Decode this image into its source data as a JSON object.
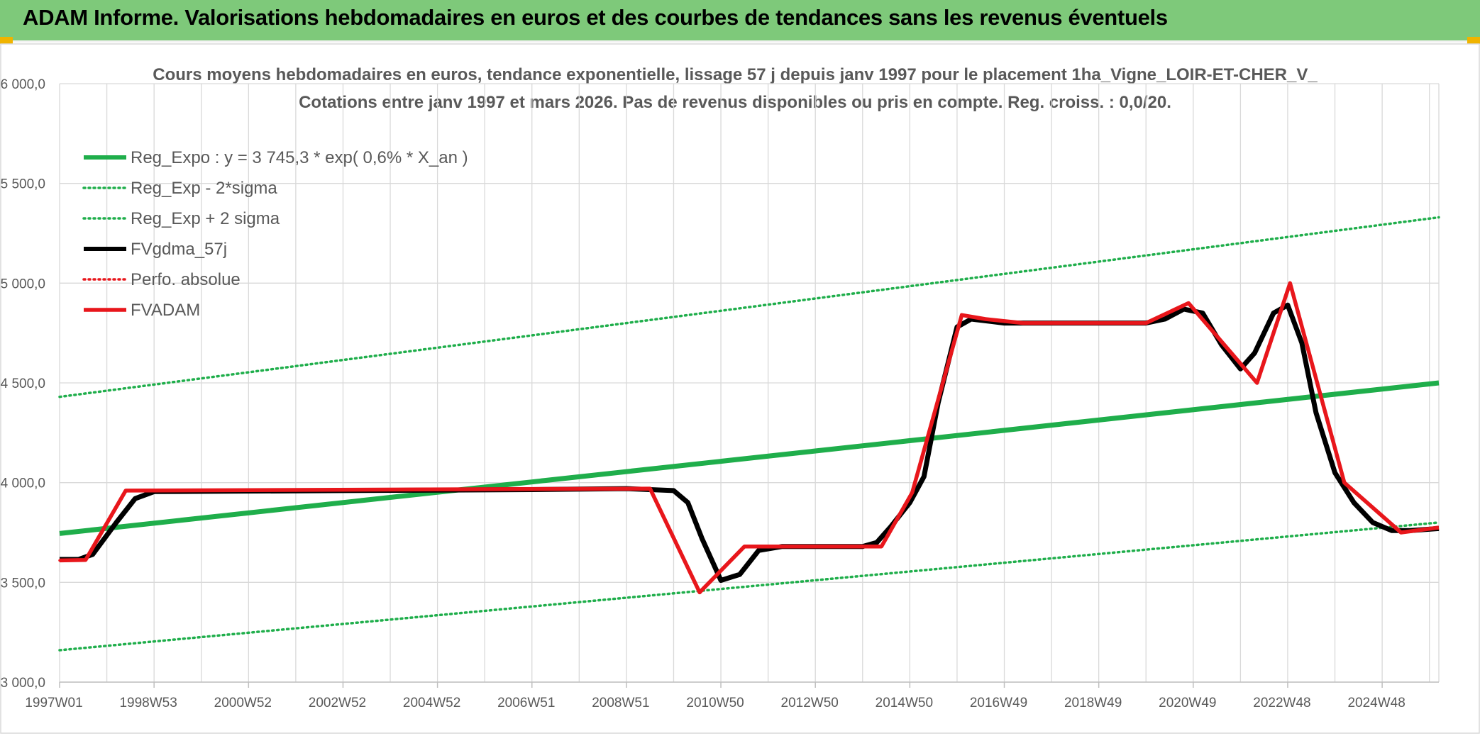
{
  "page_title": "ADAM Informe. Valorisations hebdomadaires en euros et des courbes de tendances sans les revenus éventuels",
  "colors": {
    "banner": "#7ec97a",
    "reg_expo": "#1fae4b",
    "fvgdma": "#000000",
    "fvadam": "#e8161b",
    "perfo": "#e8161b",
    "grid": "#d9d9d9"
  },
  "chart_data": {
    "type": "line",
    "title_line1": "Cours moyens hebdomadaires en euros, tendance exponentielle, lissage 57 j depuis janv 1997 pour le placement 1ha_Vigne_LOIR-ET-CHER_V_",
    "title_line2": "Cotations entre janv 1997 et mars 2026. Pas de revenus disponibles ou pris en compte. Reg. croiss. : 0,0/20.",
    "ylim": [
      3000,
      6000
    ],
    "y_ticks": [
      3000,
      3500,
      4000,
      4500,
      5000,
      5500,
      6000
    ],
    "y_tick_labels": [
      "3 000,0",
      "3 500,0",
      "4 000,0",
      "4 500,0",
      "5 000,0",
      "5 500,0",
      "6 000,0"
    ],
    "x_range_years": [
      1997.0,
      2026.2
    ],
    "x_ticks": [
      {
        "year": 1997.0,
        "label": "1997W01"
      },
      {
        "year": 1999.0,
        "label": "1998W53"
      },
      {
        "year": 2001.0,
        "label": "2000W52"
      },
      {
        "year": 2003.0,
        "label": "2002W52"
      },
      {
        "year": 2005.0,
        "label": "2004W52"
      },
      {
        "year": 2007.0,
        "label": "2006W51"
      },
      {
        "year": 2009.0,
        "label": "2008W51"
      },
      {
        "year": 2011.0,
        "label": "2010W50"
      },
      {
        "year": 2013.0,
        "label": "2012W50"
      },
      {
        "year": 2015.0,
        "label": "2014W50"
      },
      {
        "year": 2017.0,
        "label": "2016W49"
      },
      {
        "year": 2019.0,
        "label": "2018W49"
      },
      {
        "year": 2021.0,
        "label": "2020W49"
      },
      {
        "year": 2023.0,
        "label": "2022W48"
      },
      {
        "year": 2025.0,
        "label": "2024W48"
      }
    ],
    "grid": true,
    "legend_position": "top-left",
    "series": [
      {
        "name": "Reg_Expo : y = 3 745,3 * exp( 0,6% *  X_an )",
        "style": "solid-thick",
        "color": "#1fae4b",
        "x": [
          1997.0,
          2026.2
        ],
        "y": [
          3745,
          4500
        ]
      },
      {
        "name": "Reg_Exp - 2*sigma",
        "style": "dotted",
        "color": "#1fae4b",
        "x": [
          1997.0,
          2026.2
        ],
        "y": [
          3160,
          3800
        ]
      },
      {
        "name": "Reg_Exp + 2 sigma",
        "style": "dotted",
        "color": "#1fae4b",
        "x": [
          1997.0,
          2026.2
        ],
        "y": [
          4430,
          5330
        ]
      },
      {
        "name": "FVgdma_57j",
        "style": "solid",
        "color": "#000000",
        "x": [
          1997.0,
          1997.4,
          1997.7,
          1998.2,
          1998.6,
          1999.0,
          2003.0,
          2007.0,
          2009.0,
          2010.0,
          2010.3,
          2010.6,
          2011.0,
          2011.4,
          2011.8,
          2012.3,
          2013.0,
          2014.0,
          2014.3,
          2014.6,
          2015.0,
          2015.3,
          2015.6,
          2016.0,
          2016.3,
          2017.0,
          2018.0,
          2019.0,
          2020.0,
          2020.4,
          2020.8,
          2021.2,
          2021.6,
          2022.0,
          2022.3,
          2022.7,
          2023.0,
          2023.3,
          2023.6,
          2024.0,
          2024.4,
          2024.8,
          2025.2,
          2025.6,
          2026.2
        ],
        "y": [
          3615,
          3615,
          3640,
          3800,
          3920,
          3955,
          3960,
          3965,
          3970,
          3960,
          3900,
          3720,
          3510,
          3540,
          3660,
          3680,
          3680,
          3680,
          3700,
          3780,
          3900,
          4030,
          4400,
          4780,
          4820,
          4800,
          4800,
          4800,
          4800,
          4820,
          4870,
          4850,
          4690,
          4570,
          4650,
          4850,
          4890,
          4700,
          4350,
          4050,
          3900,
          3800,
          3760,
          3760,
          3770
        ]
      },
      {
        "name": "Perfo. absolue",
        "style": "dotted",
        "color": "#e8161b",
        "x": [
          1997.0,
          1997.55,
          1998.4,
          2009.5,
          2010.55,
          2011.5,
          2014.4,
          2015.05,
          2016.1,
          2016.6,
          2017.4,
          2020.0,
          2020.9,
          2022.35,
          2023.05,
          2024.2,
          2025.4,
          2026.2
        ],
        "y": [
          3610,
          3612,
          3960,
          3970,
          3450,
          3680,
          3680,
          3950,
          4840,
          4820,
          4800,
          4800,
          4900,
          4500,
          5000,
          4000,
          3750,
          3775
        ]
      },
      {
        "name": "FVADAM",
        "style": "solid-thick",
        "color": "#e8161b",
        "x": [
          1997.0,
          1997.55,
          1998.4,
          2009.5,
          2010.55,
          2011.5,
          2014.4,
          2015.05,
          2016.1,
          2016.6,
          2017.4,
          2020.0,
          2020.9,
          2022.35,
          2023.05,
          2024.2,
          2025.4,
          2026.2
        ],
        "y": [
          3610,
          3612,
          3960,
          3970,
          3450,
          3680,
          3680,
          3950,
          4840,
          4820,
          4800,
          4800,
          4900,
          4500,
          5000,
          4000,
          3750,
          3775
        ]
      }
    ]
  }
}
